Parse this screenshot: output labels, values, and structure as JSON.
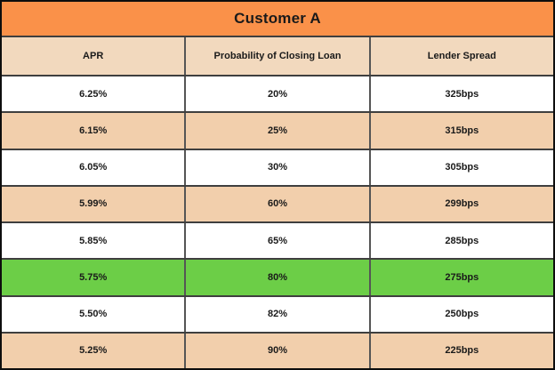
{
  "table": {
    "title": "Customer A",
    "columns": [
      "APR",
      "Probability of Closing Loan",
      "Lender Spread"
    ],
    "rows": [
      {
        "apr": "6.25%",
        "probability": "20%",
        "spread": "325bps",
        "bg": "white"
      },
      {
        "apr": "6.15%",
        "probability": "25%",
        "spread": "315bps",
        "bg": "peach"
      },
      {
        "apr": "6.05%",
        "probability": "30%",
        "spread": "305bps",
        "bg": "white"
      },
      {
        "apr": "5.99%",
        "probability": "60%",
        "spread": "299bps",
        "bg": "peach"
      },
      {
        "apr": "5.85%",
        "probability": "65%",
        "spread": "285bps",
        "bg": "white"
      },
      {
        "apr": "5.75%",
        "probability": "80%",
        "spread": "275bps",
        "bg": "green"
      },
      {
        "apr": "5.50%",
        "probability": "82%",
        "spread": "250bps",
        "bg": "white"
      },
      {
        "apr": "5.25%",
        "probability": "90%",
        "spread": "225bps",
        "bg": "peach"
      }
    ],
    "colors": {
      "title_bg": "#FA9149",
      "header_bg": "#F2D9BE",
      "band_bg": "#F2CFAC",
      "highlight_bg": "#6CCE47",
      "grid": "#3F3F3F",
      "outer_border": "#0D0D0D",
      "text": "#1A1A1A"
    }
  },
  "chart_data": {
    "type": "table",
    "title": "Customer A",
    "columns": [
      "APR",
      "Probability of Closing Loan",
      "Lender Spread"
    ],
    "rows": [
      [
        "6.25%",
        "20%",
        "325bps"
      ],
      [
        "6.15%",
        "25%",
        "315bps"
      ],
      [
        "6.05%",
        "30%",
        "305bps"
      ],
      [
        "5.99%",
        "60%",
        "299bps"
      ],
      [
        "5.85%",
        "65%",
        "285bps"
      ],
      [
        "5.75%",
        "80%",
        "275bps"
      ],
      [
        "5.50%",
        "82%",
        "250bps"
      ],
      [
        "5.25%",
        "90%",
        "225bps"
      ]
    ],
    "highlighted_row": {
      "index": 5,
      "values": [
        "5.75%",
        "80%",
        "275bps"
      ],
      "highlight_color": "#6CCE47"
    },
    "layout": {
      "banding": "alternating white and peach rows",
      "band_color": "#F2CFAC",
      "title_bar_color": "#FA9149",
      "header_color": "#F2D9BE"
    }
  }
}
